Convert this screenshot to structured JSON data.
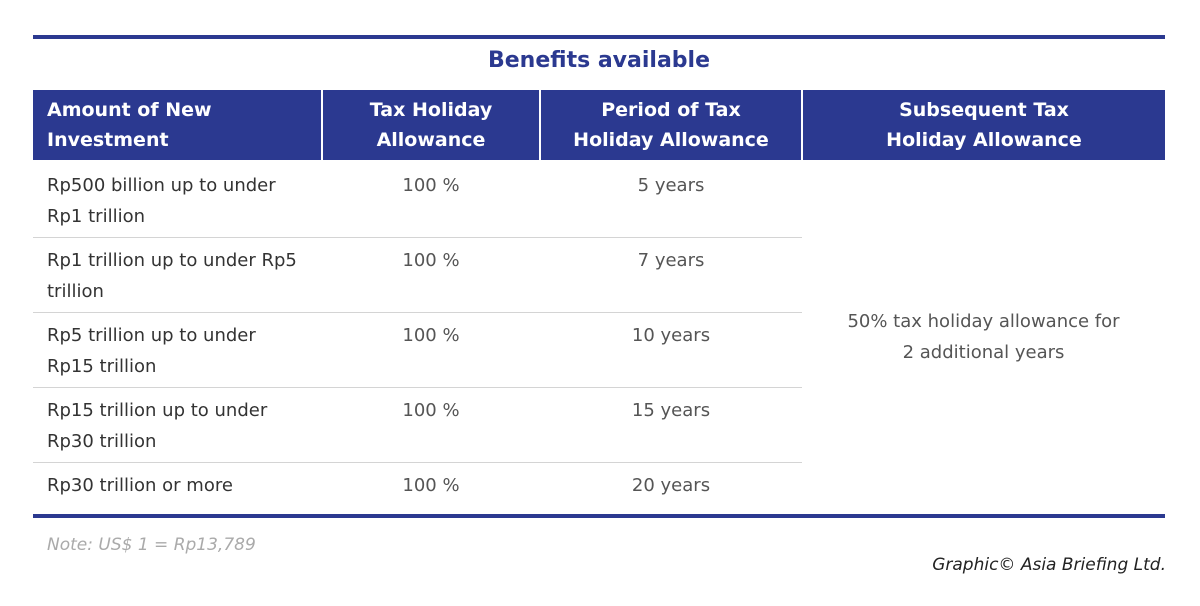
{
  "header": {
    "title": "Benefits available"
  },
  "table": {
    "columns": [
      "Amount of New Investment",
      "Tax Holiday Allowance",
      "Period of Tax Holiday Allowance",
      "Subsequent Tax Holiday Allowance"
    ],
    "rows": [
      [
        "Rp500 billion up to under Rp1 trillion",
        "100 %",
        "5 years"
      ],
      [
        "Rp1 trillion up to under Rp5 trillion",
        "100 %",
        "7 years"
      ],
      [
        "Rp5 trillion up to under Rp15 trillion",
        "100 %",
        "10 years"
      ],
      [
        "Rp15 trillion up to under Rp30 trillion",
        "100 %",
        "15 years"
      ],
      [
        "Rp30 trillion or more",
        "100 %",
        "20 years"
      ]
    ],
    "subsequent": "50% tax holiday allowance for 2 additional years"
  },
  "footer": {
    "note": "Note: US$ 1 = Rp13,789",
    "credit": "Graphic© Asia Briefing Ltd."
  }
}
